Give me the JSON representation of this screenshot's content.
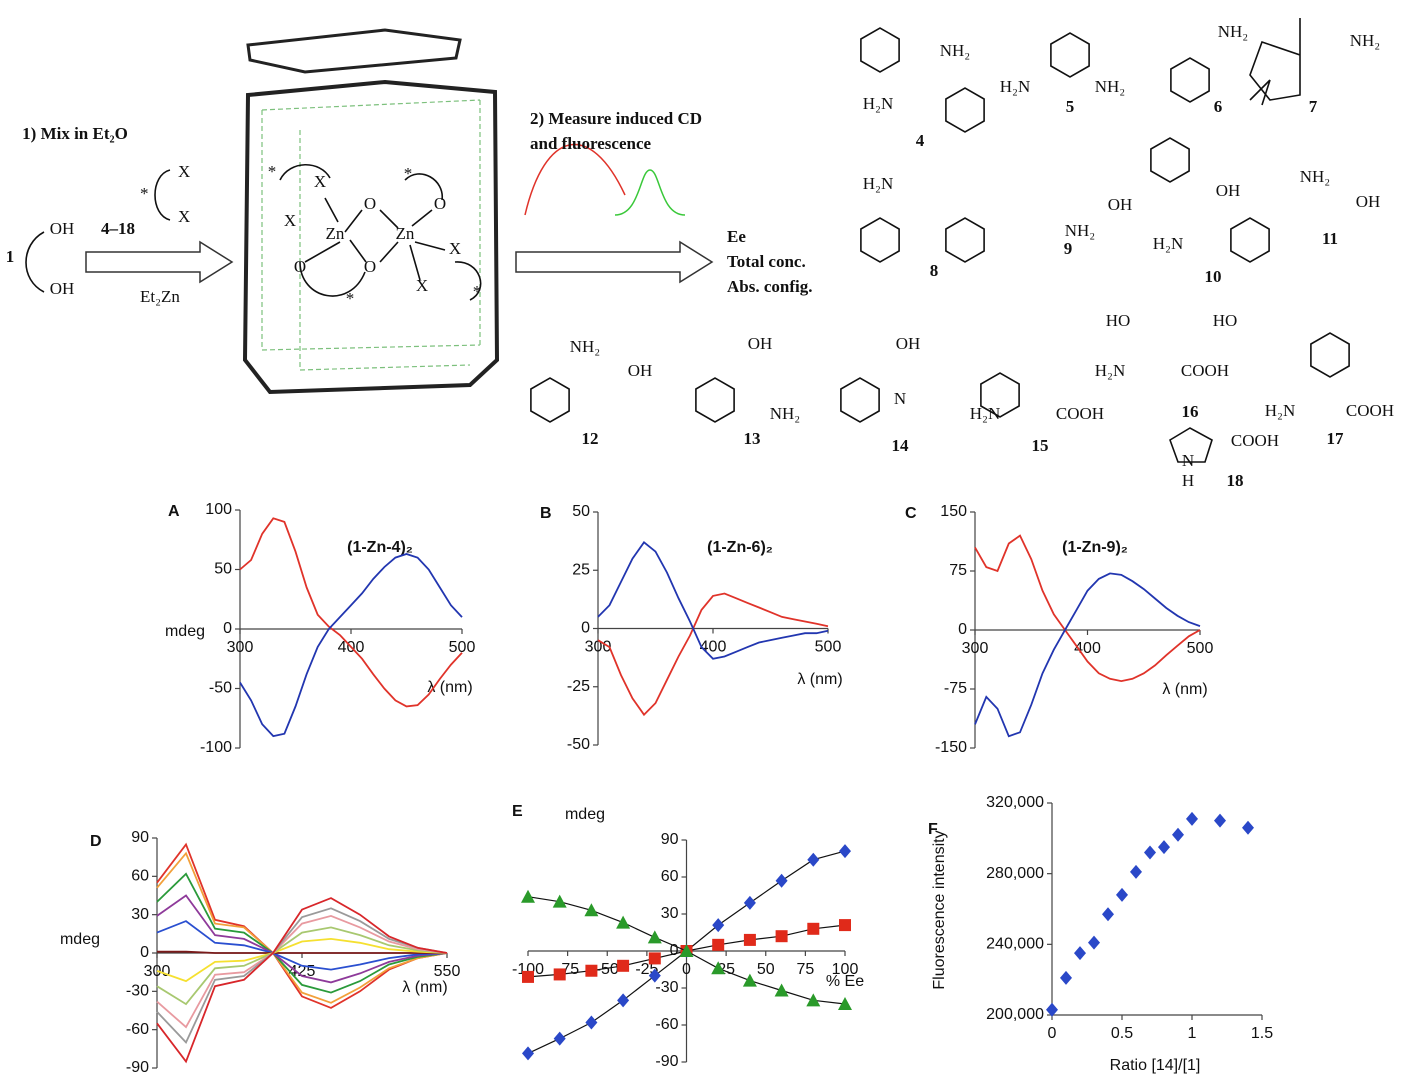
{
  "scheme": {
    "labels": [
      "1) Mix in Et₂O",
      "4–18",
      "X",
      "X",
      "*",
      "1",
      "OH",
      "OH",
      "Et₂Zn",
      "2) Measure induced CD",
      "and fluorescence",
      "Ee",
      "Total conc.",
      "Abs. config.",
      "Zn",
      "Zn",
      "O",
      "O",
      "O",
      "O",
      "X",
      "X",
      "X",
      "X",
      "*",
      "*",
      "*",
      "*",
      "4",
      "5",
      "6",
      "7",
      "8",
      "9",
      "10",
      "11",
      "12",
      "13",
      "14",
      "15",
      "16",
      "17",
      "18",
      "NH₂",
      "H₂N",
      "H₂N",
      "NH₂",
      "NH₂",
      "NH₂",
      "H₂N",
      "OH",
      "NH₂",
      "OH",
      "H₂N",
      "NH₂",
      "OH",
      "NH₂",
      "OH",
      "OH",
      "NH₂",
      "OH",
      "N",
      "H₂N",
      "COOH",
      "HO",
      "H₂N",
      "COOH",
      "HO",
      "H₂N",
      "COOH",
      "N",
      "H",
      "COOH"
    ]
  },
  "chart_data": [
    {
      "type": "line",
      "panel": "A",
      "title": "(1-Zn-4)₂",
      "xlabel": "λ (nm)",
      "ylabel": "mdeg",
      "x": [
        300,
        310,
        320,
        330,
        340,
        350,
        360,
        370,
        380,
        390,
        400,
        410,
        420,
        430,
        440,
        450,
        460,
        470,
        480,
        490,
        500
      ],
      "xlim": [
        300,
        500
      ],
      "xticks": [
        300,
        400,
        500
      ],
      "ylim": [
        -100,
        100
      ],
      "yticks": [
        -100,
        -50,
        0,
        50,
        100
      ],
      "series": [
        {
          "color": "#e0332a",
          "values": [
            50,
            58,
            80,
            93,
            90,
            65,
            35,
            12,
            2,
            -5,
            -15,
            -25,
            -38,
            -50,
            -60,
            -65,
            -64,
            -55,
            -42,
            -30,
            -20
          ]
        },
        {
          "color": "#2236b0",
          "values": [
            -45,
            -60,
            -80,
            -90,
            -88,
            -65,
            -38,
            -15,
            0,
            10,
            20,
            30,
            42,
            52,
            60,
            63,
            60,
            50,
            35,
            20,
            10
          ]
        }
      ]
    },
    {
      "type": "line",
      "panel": "B",
      "title": "(1-Zn-6)₂",
      "xlabel": "λ (nm)",
      "x": [
        300,
        310,
        320,
        330,
        340,
        350,
        360,
        370,
        380,
        390,
        400,
        410,
        420,
        430,
        440,
        450,
        460,
        470,
        480,
        490,
        500
      ],
      "xlim": [
        300,
        500
      ],
      "xticks": [
        300,
        400,
        500
      ],
      "ylim": [
        -50,
        50
      ],
      "yticks": [
        -50,
        -25,
        0,
        25,
        50
      ],
      "series": [
        {
          "color": "#e0332a",
          "values": [
            -5,
            -8,
            -20,
            -30,
            -37,
            -32,
            -22,
            -12,
            -3,
            8,
            14,
            15,
            13,
            11,
            9,
            7,
            5,
            4,
            3,
            2,
            1
          ]
        },
        {
          "color": "#2236b0",
          "values": [
            5,
            10,
            20,
            30,
            37,
            33,
            24,
            13,
            3,
            -8,
            -13,
            -12,
            -10,
            -8,
            -6,
            -5,
            -4,
            -3,
            -2,
            -2,
            -1
          ]
        }
      ]
    },
    {
      "type": "line",
      "panel": "C",
      "title": "(1-Zn-9)₂",
      "xlabel": "λ (nm)",
      "x": [
        300,
        310,
        320,
        330,
        340,
        350,
        360,
        370,
        380,
        390,
        400,
        410,
        420,
        430,
        440,
        450,
        460,
        470,
        480,
        490,
        500
      ],
      "xlim": [
        300,
        500
      ],
      "xticks": [
        300,
        400,
        500
      ],
      "ylim": [
        -150,
        150
      ],
      "yticks": [
        -150,
        -75,
        0,
        75,
        150
      ],
      "series": [
        {
          "color": "#e0332a",
          "values": [
            105,
            80,
            75,
            110,
            120,
            90,
            50,
            20,
            0,
            -20,
            -40,
            -55,
            -62,
            -65,
            -62,
            -55,
            -45,
            -32,
            -20,
            -8,
            0
          ]
        },
        {
          "color": "#2236b0",
          "values": [
            -120,
            -85,
            -100,
            -135,
            -130,
            -95,
            -55,
            -25,
            0,
            25,
            50,
            65,
            72,
            70,
            62,
            52,
            40,
            28,
            18,
            10,
            5
          ]
        }
      ]
    },
    {
      "type": "line",
      "panel": "D",
      "xlabel": "λ (nm)",
      "ylabel": "mdeg",
      "x": [
        300,
        325,
        350,
        375,
        400,
        425,
        450,
        475,
        500,
        525,
        550
      ],
      "xlim": [
        300,
        550
      ],
      "xticks": [
        300,
        425,
        550
      ],
      "ylim": [
        -90,
        90
      ],
      "yticks": [
        -90,
        -60,
        -30,
        0,
        30,
        60,
        90
      ],
      "series": [
        {
          "color": "#e0332a",
          "values": [
            55,
            85,
            26,
            21,
            0,
            -34,
            -43,
            -30,
            -13,
            -4,
            0
          ]
        },
        {
          "color": "#f2a03a",
          "values": [
            51,
            78,
            23,
            20,
            0,
            -31,
            -39,
            -27,
            -12,
            -4,
            0
          ]
        },
        {
          "color": "#2a9a3a",
          "values": [
            40,
            62,
            19,
            16,
            0,
            -25,
            -31,
            -22,
            -9,
            -3,
            0
          ]
        },
        {
          "color": "#8e3a9a",
          "values": [
            29,
            45,
            14,
            11,
            0,
            -18,
            -23,
            -16,
            -7,
            -2,
            0
          ]
        },
        {
          "color": "#2a4fd0",
          "values": [
            16,
            25,
            8,
            6,
            0,
            -10,
            -13,
            -9,
            -4,
            -1,
            0
          ]
        },
        {
          "color": "#7a1a1a",
          "values": [
            1,
            1,
            0,
            0,
            0,
            0,
            0,
            0,
            0,
            0,
            0
          ]
        },
        {
          "color": "#f5e030",
          "values": [
            -14,
            -22,
            -7,
            -6,
            0,
            9,
            11,
            8,
            3,
            1,
            0
          ]
        },
        {
          "color": "#a8c870",
          "values": [
            -26,
            -40,
            -12,
            -10,
            0,
            16,
            20,
            14,
            6,
            2,
            0
          ]
        },
        {
          "color": "#e89aa0",
          "values": [
            -38,
            -58,
            -17,
            -15,
            0,
            23,
            29,
            20,
            9,
            3,
            0
          ]
        },
        {
          "color": "#9a9a9a",
          "values": [
            -46,
            -70,
            -21,
            -18,
            0,
            28,
            35,
            25,
            11,
            4,
            0
          ]
        },
        {
          "color": "#d8262a",
          "values": [
            -55,
            -85,
            -26,
            -21,
            0,
            34,
            43,
            30,
            13,
            4,
            0
          ]
        }
      ]
    },
    {
      "type": "scatter",
      "panel": "E",
      "xlabel": "% Ee",
      "ylabel": "mdeg",
      "fit_lines": true,
      "x": [
        -100,
        -80,
        -60,
        -40,
        -20,
        0,
        20,
        40,
        60,
        80,
        100
      ],
      "xlim": [
        -100,
        100
      ],
      "xticks": [
        -100,
        -75,
        -50,
        -25,
        0,
        25,
        50,
        75,
        100
      ],
      "ylim": [
        -90,
        90
      ],
      "yticks": [
        -90,
        -60,
        -30,
        0,
        30,
        60,
        90
      ],
      "series": [
        {
          "color": "#2a48c8",
          "marker": "diamond",
          "values": [
            -83,
            -71,
            -58,
            -40,
            -20,
            0,
            21,
            39,
            57,
            74,
            81
          ]
        },
        {
          "color": "#e02a1a",
          "marker": "square",
          "values": [
            -21,
            -19,
            -16,
            -12,
            -6,
            0,
            5,
            9,
            12,
            18,
            21
          ]
        },
        {
          "color": "#2a9a2a",
          "marker": "triangle",
          "values": [
            44,
            40,
            33,
            23,
            11,
            0,
            -14,
            -24,
            -32,
            -40,
            -43
          ]
        }
      ]
    },
    {
      "type": "scatter",
      "panel": "F",
      "xlabel": "Ratio [14]/[1]",
      "ylabel": "Fluorescence intensity",
      "x": [
        0,
        0.1,
        0.2,
        0.3,
        0.4,
        0.5,
        0.6,
        0.7,
        0.8,
        0.9,
        1.0,
        1.2,
        1.4
      ],
      "xlim": [
        0,
        1.5
      ],
      "xticks": [
        0,
        0.5,
        1,
        1.5
      ],
      "ylim": [
        200000,
        320000
      ],
      "yticks": [
        {
          "value": 200000,
          "label": "200,000"
        },
        {
          "value": 240000,
          "label": "240,000"
        },
        {
          "value": 280000,
          "label": "280,000"
        },
        {
          "value": 320000,
          "label": "320,000"
        }
      ],
      "series": [
        {
          "color": "#2a48c8",
          "marker": "diamond",
          "values": [
            203000,
            221000,
            235000,
            241000,
            257000,
            268000,
            281000,
            292000,
            295000,
            302000,
            311000,
            310000,
            306000
          ]
        }
      ]
    }
  ]
}
